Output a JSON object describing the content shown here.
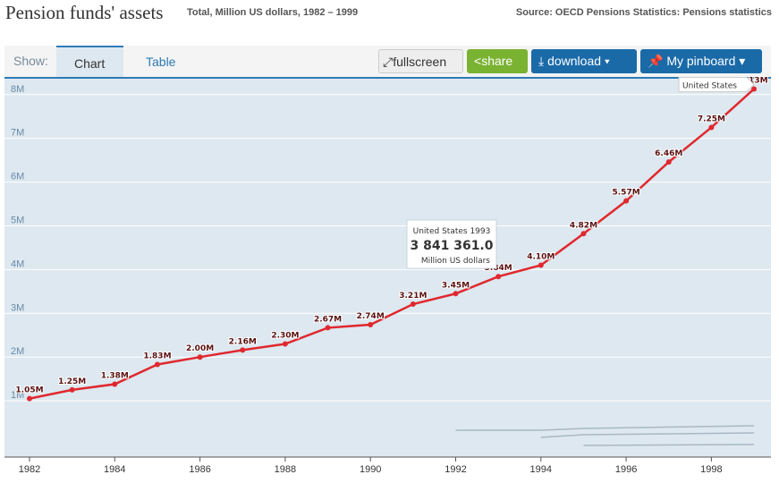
{
  "header": {
    "title": "Pension funds' assets",
    "subtitle": "Total, Million US dollars, 1982 – 1999",
    "source": "Source: OECD Pensions Statistics: Pensions statistics"
  },
  "toolbar": {
    "show_label": "Show:",
    "tabs": [
      "Chart",
      "Table"
    ],
    "active_tab": "Chart",
    "fullscreen": "fullscreen",
    "share": "share",
    "download": "download ▾",
    "pinboard": "My pinboard ▾"
  },
  "colors": {
    "series": "#e0282e",
    "accent": "#1a6aa8",
    "share": "#7ab232",
    "plot_bg": "#dde8f0"
  },
  "chart_data": {
    "type": "line",
    "x": [
      1982,
      1983,
      1984,
      1985,
      1986,
      1987,
      1988,
      1989,
      1990,
      1991,
      1992,
      1993,
      1994,
      1995,
      1996,
      1997,
      1998,
      1999
    ],
    "series": [
      {
        "name": "United States",
        "values": [
          1.05,
          1.25,
          1.38,
          1.83,
          2.0,
          2.16,
          2.3,
          2.67,
          2.74,
          3.21,
          3.45,
          3.84,
          4.1,
          4.82,
          5.57,
          6.46,
          7.25,
          8.13
        ],
        "labels": [
          "1.05M",
          "1.25M",
          "1.38M",
          "1.83M",
          "2.00M",
          "2.16M",
          "2.30M",
          "2.67M",
          "2.74M",
          "3.21M",
          "3.45M",
          "3.84M",
          "4.10M",
          "4.82M",
          "5.57M",
          "6.46M",
          "7.25M",
          "8.13M"
        ]
      }
    ],
    "y_ticks": [
      "1M",
      "2M",
      "3M",
      "4M",
      "5M",
      "6M",
      "7M",
      "8M"
    ],
    "x_ticks": [
      "1982",
      "1984",
      "1986",
      "1988",
      "1990",
      "1992",
      "1994",
      "1996",
      "1998"
    ],
    "ylim": [
      0,
      8.5
    ],
    "grid": true,
    "tooltip": {
      "title": "United States 1993",
      "value": "3 841 361.0",
      "unit": "Million US dollars"
    }
  }
}
